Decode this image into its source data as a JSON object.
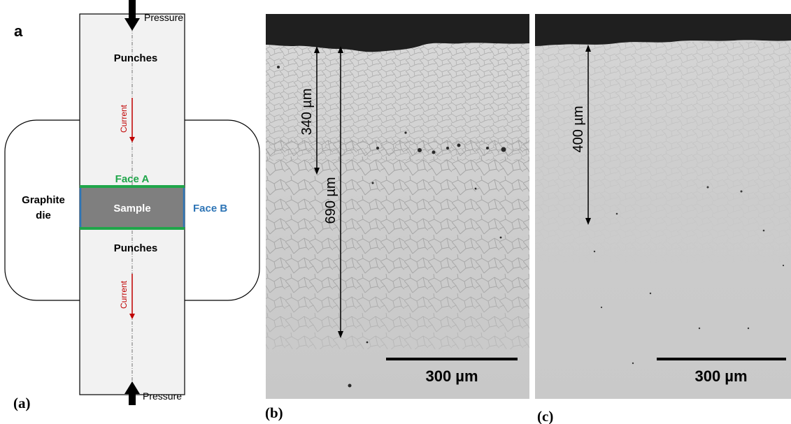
{
  "panel_a": {
    "letter": "a",
    "caption": "(a)",
    "pressure_top": "Pressure",
    "pressure_bottom": "Pressure",
    "punches_top": "Punches",
    "punches_bottom": "Punches",
    "current_top": "Current",
    "current_bottom": "Current",
    "face_a": "Face A",
    "face_b": "Face B",
    "sample": "Sample",
    "graphite_line1": "Graphite",
    "graphite_line2": "die",
    "colors": {
      "face_a": "#1fa64a",
      "face_b": "#2e75b6",
      "current": "#c00000",
      "sample_fill": "#7f7f7f",
      "punch_fill": "#f2f2f2"
    }
  },
  "panel_b": {
    "caption": "(b)",
    "depth_short": "340 µm",
    "depth_long": "690 µm",
    "scale_bar": "300 µm"
  },
  "panel_c": {
    "caption": "(c)",
    "depth": "400 µm",
    "scale_bar": "300 µm"
  }
}
